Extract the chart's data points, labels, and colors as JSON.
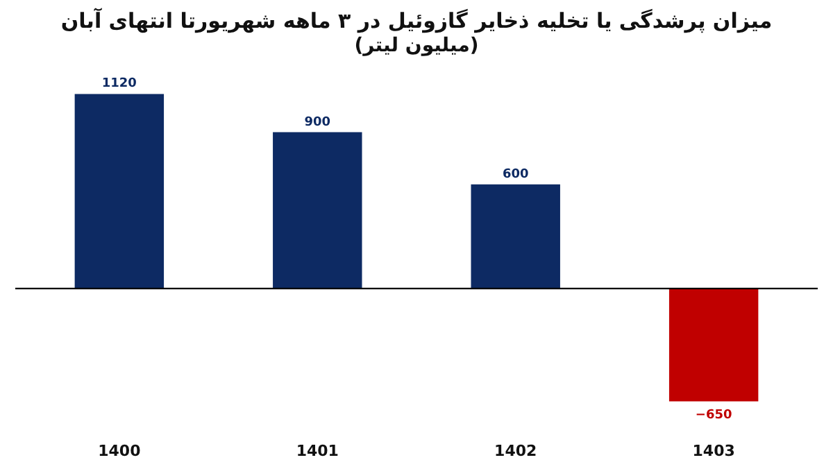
{
  "chart_data": {
    "type": "bar",
    "title": "میزان پرشدگی یا تخلیه ذخایر گازوئیل در ۳ ماهه شهریورتا انتهای آبان",
    "subtitle": "(میلیون لیتر)",
    "categories": [
      "1400",
      "1401",
      "1402",
      "1403"
    ],
    "values": [
      1120,
      900,
      600,
      -650
    ],
    "colors": [
      "#0d2a63",
      "#0d2a63",
      "#0d2a63",
      "#c00000"
    ],
    "data_labels": true
  }
}
